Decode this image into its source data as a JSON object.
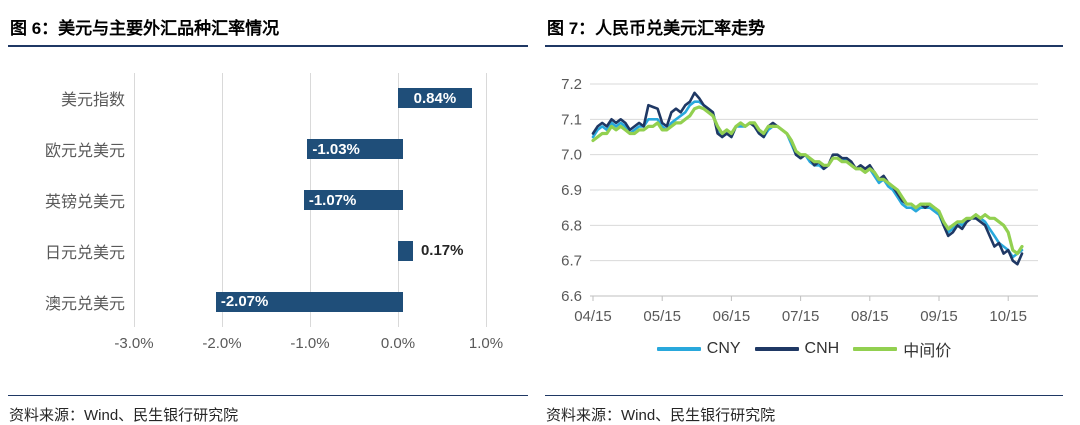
{
  "left_panel": {
    "title": "图 6：美元与主要外汇品种汇率情况",
    "source": "资料来源：Wind、民生银行研究院",
    "chart_data": {
      "type": "bar",
      "orientation": "horizontal",
      "title": "美元与主要外汇品种汇率情况",
      "categories": [
        "美元指数",
        "欧元兑美元",
        "英镑兑美元",
        "日元兑美元",
        "澳元兑美元"
      ],
      "values": [
        0.84,
        -1.03,
        -1.07,
        0.17,
        -2.07
      ],
      "labels": [
        "0.84%",
        "-1.03%",
        "-1.07%",
        "0.17%",
        "-2.07%"
      ],
      "x_ticks": [
        "-3.0%",
        "-2.0%",
        "-1.0%",
        "0.0%",
        "1.0%"
      ],
      "xlim": [
        -3.0,
        1.0
      ],
      "grid": true,
      "bar_color": "#1F4E79",
      "grid_color": "#D9D9D9"
    }
  },
  "right_panel": {
    "title": "图 7：人民币兑美元汇率走势",
    "source": "资料来源：Wind、民生银行研究院",
    "chart_data": {
      "type": "line",
      "title": "人民币兑美元汇率走势",
      "x_ticks": [
        "04/15",
        "05/15",
        "06/15",
        "07/15",
        "08/15",
        "09/15",
        "10/15"
      ],
      "y_ticks": [
        7.2,
        7.1,
        7.0,
        6.9,
        6.8,
        6.7,
        6.6
      ],
      "ylim": [
        6.6,
        7.2
      ],
      "grid": true,
      "grid_color": "#D9D9D9",
      "axis_color": "#BFBFBF",
      "legend_position": "bottom",
      "series": [
        {
          "name": "CNY",
          "color": "#29A8DC",
          "values": [
            7.05,
            7.07,
            7.08,
            7.07,
            7.09,
            7.08,
            7.09,
            7.08,
            7.06,
            7.07,
            7.08,
            7.08,
            7.1,
            7.1,
            7.1,
            7.08,
            7.07,
            7.09,
            7.1,
            7.11,
            7.12,
            7.14,
            7.15,
            7.15,
            7.14,
            7.13,
            7.12,
            7.07,
            7.05,
            7.06,
            7.05,
            7.08,
            7.08,
            7.08,
            7.09,
            7.08,
            7.06,
            7.05,
            7.07,
            7.08,
            7.08,
            7.07,
            7.06,
            7.03,
            7.0,
            6.99,
            7.0,
            6.98,
            6.97,
            6.97,
            6.96,
            6.97,
            6.99,
            6.99,
            6.98,
            6.99,
            6.97,
            6.96,
            6.96,
            6.95,
            6.96,
            6.94,
            6.92,
            6.93,
            6.91,
            6.9,
            6.88,
            6.86,
            6.85,
            6.85,
            6.84,
            6.85,
            6.85,
            6.85,
            6.84,
            6.83,
            6.8,
            6.78,
            6.79,
            6.81,
            6.8,
            6.81,
            6.82,
            6.82,
            6.82,
            6.81,
            6.79,
            6.77,
            6.75,
            6.74,
            6.73,
            6.71,
            6.72,
            6.73
          ]
        },
        {
          "name": "CNH",
          "color": "#1F3864",
          "values": [
            7.06,
            7.08,
            7.09,
            7.08,
            7.1,
            7.09,
            7.1,
            7.09,
            7.07,
            7.08,
            7.09,
            7.08,
            7.14,
            7.135,
            7.13,
            7.09,
            7.08,
            7.12,
            7.13,
            7.12,
            7.14,
            7.15,
            7.175,
            7.16,
            7.14,
            7.13,
            7.12,
            7.06,
            7.05,
            7.06,
            7.05,
            7.08,
            7.09,
            7.08,
            7.09,
            7.08,
            7.06,
            7.05,
            7.08,
            7.09,
            7.08,
            7.07,
            7.06,
            7.04,
            7.0,
            6.99,
            7.0,
            6.99,
            6.97,
            6.98,
            6.96,
            6.97,
            7.0,
            7.0,
            6.99,
            6.99,
            6.98,
            6.96,
            6.97,
            6.96,
            6.97,
            6.95,
            6.93,
            6.94,
            6.92,
            6.91,
            6.89,
            6.87,
            6.86,
            6.86,
            6.85,
            6.86,
            6.85,
            6.86,
            6.85,
            6.84,
            6.8,
            6.77,
            6.78,
            6.8,
            6.79,
            6.81,
            6.82,
            6.82,
            6.81,
            6.8,
            6.77,
            6.74,
            6.75,
            6.72,
            6.73,
            6.7,
            6.69,
            6.72
          ]
        },
        {
          "name": "中间价",
          "color": "#92D050",
          "values": [
            7.04,
            7.05,
            7.06,
            7.06,
            7.08,
            7.07,
            7.08,
            7.07,
            7.06,
            7.06,
            7.07,
            7.07,
            7.08,
            7.08,
            7.09,
            7.07,
            7.07,
            7.08,
            7.09,
            7.09,
            7.1,
            7.11,
            7.13,
            7.135,
            7.13,
            7.12,
            7.11,
            7.08,
            7.06,
            7.07,
            7.06,
            7.08,
            7.09,
            7.08,
            7.09,
            7.09,
            7.07,
            7.06,
            7.08,
            7.08,
            7.08,
            7.07,
            7.06,
            7.04,
            7.01,
            7.0,
            7.0,
            6.99,
            6.98,
            6.98,
            6.97,
            6.97,
            6.99,
            6.99,
            6.98,
            6.98,
            6.97,
            6.96,
            6.96,
            6.95,
            6.96,
            6.95,
            6.93,
            6.93,
            6.92,
            6.91,
            6.9,
            6.88,
            6.86,
            6.86,
            6.85,
            6.86,
            6.86,
            6.86,
            6.85,
            6.84,
            6.81,
            6.79,
            6.8,
            6.81,
            6.81,
            6.82,
            6.82,
            6.83,
            6.82,
            6.83,
            6.82,
            6.82,
            6.81,
            6.8,
            6.78,
            6.73,
            6.72,
            6.74
          ]
        }
      ]
    }
  }
}
